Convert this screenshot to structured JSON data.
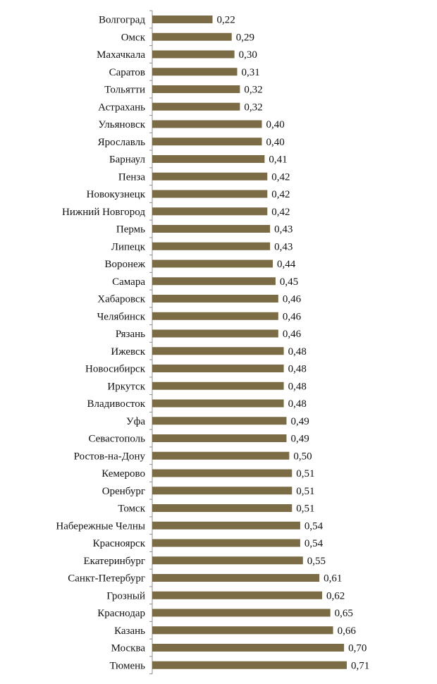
{
  "chart_data": {
    "type": "bar",
    "orientation": "horizontal",
    "title": "",
    "xlabel": "",
    "ylabel": "",
    "grid": false,
    "legend": "none",
    "bar_color": "#7B6C46",
    "axis_color": "#8c8c8c",
    "decimal_separator": ",",
    "xlim": [
      0,
      0.72
    ],
    "categories": [
      "Волгоград",
      "Омск",
      "Махачкала",
      "Саратов",
      "Тольятти",
      "Астрахань",
      "Ульяновск",
      "Ярославль",
      "Барнаул",
      "Пенза",
      "Новокузнецк",
      "Нижний Новгород",
      "Пермь",
      "Липецк",
      "Воронеж",
      "Самара",
      "Хабаровск",
      "Челябинск",
      "Рязань",
      "Ижевск",
      "Новосибирск",
      "Иркутск",
      "Владивосток",
      "Уфа",
      "Севастополь",
      "Ростов-на-Дону",
      "Кемерово",
      "Оренбург",
      "Томск",
      "Набережные Челны",
      "Красноярск",
      "Екатеринбург",
      "Санкт-Петербург",
      "Грозный",
      "Краснодар",
      "Казань",
      "Москва",
      "Тюмень"
    ],
    "values": [
      0.22,
      0.29,
      0.3,
      0.31,
      0.32,
      0.32,
      0.4,
      0.4,
      0.41,
      0.42,
      0.42,
      0.42,
      0.43,
      0.43,
      0.44,
      0.45,
      0.46,
      0.46,
      0.46,
      0.48,
      0.48,
      0.48,
      0.48,
      0.49,
      0.49,
      0.5,
      0.51,
      0.51,
      0.51,
      0.54,
      0.54,
      0.55,
      0.61,
      0.62,
      0.65,
      0.66,
      0.7,
      0.71
    ]
  }
}
